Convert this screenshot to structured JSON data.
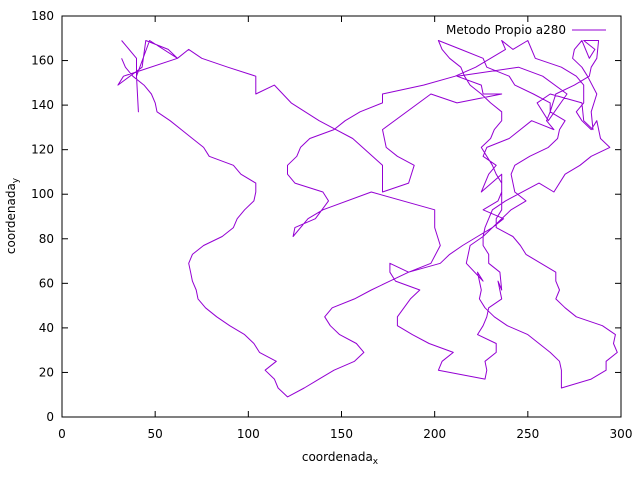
{
  "chart_data": {
    "type": "line",
    "title": "",
    "xlabel": "coordenada",
    "xlabel_sub": "x",
    "ylabel": "coordenada",
    "ylabel_sub": "y",
    "xlim": [
      0,
      300
    ],
    "ylim": [
      0,
      180
    ],
    "xticks": [
      0,
      50,
      100,
      150,
      200,
      250,
      300
    ],
    "yticks": [
      0,
      20,
      40,
      60,
      80,
      100,
      120,
      140,
      160,
      180
    ],
    "grid": false,
    "legend": "top-right",
    "series": [
      {
        "name": "Metodo Propio a280",
        "color": "#9400d3",
        "x": [
          32,
          40,
          40,
          41,
          40,
          47,
          62,
          57,
          45,
          43,
          30,
          33,
          62,
          68,
          75,
          89,
          104,
          104,
          114,
          123,
          138,
          156,
          172,
          172,
          186,
          189,
          180,
          174,
          172,
          198,
          212,
          236,
          226,
          225,
          212,
          245,
          258,
          271,
          261,
          255,
          262,
          279,
          280,
          285,
          284,
          287,
          282,
          279,
          274,
          275,
          279,
          283,
          286,
          280,
          288,
          287,
          284,
          283,
          275,
          265,
          262,
          260,
          264,
          252,
          240,
          228,
          226,
          233,
          229,
          225,
          236,
          236,
          234,
          226,
          237,
          231,
          226,
          226,
          229,
          229,
          235,
          236,
          234,
          236,
          229,
          228,
          226,
          223,
          233,
          233,
          227,
          228,
          227,
          202,
          204,
          210,
          197,
          188,
          180,
          180,
          187,
          192,
          179,
          176,
          176,
          186,
          198,
          203,
          200,
          200,
          166,
          140,
          132,
          124,
          125,
          136,
          143,
          140,
          125,
          121,
          121,
          126,
          128,
          133,
          146,
          152,
          160,
          172,
          172,
          194,
          211,
          222,
          230,
          238,
          236,
          242,
          250,
          254,
          268,
          276,
          280,
          280,
          276,
          279,
          284,
          287,
          289,
          294,
          284,
          278,
          270,
          264,
          256,
          238,
          231,
          227,
          226,
          219,
          217,
          226,
          223,
          225,
          224,
          227,
          232,
          239,
          250,
          262,
          267,
          268,
          268,
          268,
          284,
          292,
          292,
          298,
          296,
          297,
          290,
          276,
          270,
          265,
          267,
          265,
          265,
          257,
          249,
          246,
          242,
          233,
          233,
          236,
          236,
          236,
          236,
          233,
          231,
          228,
          225,
          230,
          232,
          236,
          236,
          230,
          225,
          219,
          216,
          214,
          208,
          204,
          202,
          214,
          226,
          228,
          240,
          243,
          253,
          262,
          262,
          270,
          267,
          266,
          261,
          251,
          243,
          241,
          243,
          249,
          241,
          236,
          231,
          223,
          215,
          208,
          203,
          186,
          176,
          166,
          157,
          145,
          141,
          144,
          149,
          158,
          162,
          157,
          146,
          138,
          130,
          121,
          116,
          114,
          109,
          115,
          106,
          103,
          98,
          90,
          83,
          77,
          73,
          72,
          70,
          69,
          68,
          70,
          76,
          86,
          92,
          94,
          98,
          103,
          104,
          104,
          96,
          92,
          79,
          76,
          70,
          64,
          58,
          51,
          50,
          48,
          44,
          38,
          34,
          32
        ],
        "y": [
          169,
          161,
          153,
          137,
          153,
          169,
          161,
          165,
          169,
          157,
          149,
          153,
          161,
          165,
          161,
          157,
          153,
          145,
          149,
          141,
          133,
          125,
          113,
          101,
          105,
          113,
          117,
          121,
          129,
          145,
          141,
          145,
          145,
          149,
          153,
          157,
          153,
          145,
          133,
          141,
          145,
          141,
          133,
          129,
          137,
          145,
          153,
          157,
          161,
          165,
          169,
          161,
          165,
          169,
          169,
          161,
          157,
          153,
          149,
          145,
          137,
          133,
          129,
          133,
          125,
          121,
          117,
          113,
          109,
          101,
          109,
          101,
          97,
          93,
          89,
          85,
          81,
          77,
          73,
          69,
          65,
          57,
          61,
          53,
          49,
          45,
          41,
          37,
          33,
          29,
          25,
          21,
          17,
          21,
          25,
          29,
          33,
          37,
          41,
          45,
          53,
          57,
          61,
          65,
          69,
          65,
          69,
          77,
          85,
          93,
          101,
          93,
          89,
          81,
          85,
          89,
          97,
          101,
          105,
          109,
          113,
          117,
          121,
          125,
          129,
          133,
          137,
          141,
          145,
          149,
          153,
          157,
          161,
          165,
          169,
          165,
          169,
          161,
          157,
          153,
          149,
          141,
          137,
          133,
          129,
          133,
          125,
          121,
          117,
          113,
          109,
          101,
          105,
          97,
          93,
          85,
          81,
          77,
          69,
          61,
          65,
          57,
          53,
          49,
          45,
          41,
          37,
          29,
          25,
          21,
          17,
          13,
          17,
          21,
          25,
          29,
          33,
          37,
          41,
          45,
          49,
          53,
          57,
          61,
          65,
          69,
          73,
          77,
          81,
          85,
          89,
          93,
          97,
          101,
          105,
          109,
          113,
          117,
          121,
          125,
          129,
          133,
          137,
          141,
          145,
          149,
          153,
          157,
          161,
          165,
          169,
          165,
          161,
          157,
          153,
          149,
          145,
          141,
          137,
          133,
          129,
          125,
          121,
          117,
          113,
          109,
          101,
          97,
          93,
          89,
          85,
          81,
          77,
          73,
          69,
          65,
          61,
          57,
          53,
          49,
          45,
          41,
          37,
          33,
          29,
          25,
          21,
          17,
          13,
          9,
          13,
          17,
          21,
          25,
          29,
          33,
          37,
          41,
          45,
          49,
          53,
          57,
          61,
          65,
          69,
          73,
          77,
          81,
          85,
          89,
          93,
          97,
          101,
          105,
          109,
          113,
          117,
          121,
          125,
          129,
          133,
          137,
          141,
          145,
          149,
          153,
          157,
          161
        ]
      }
    ]
  }
}
